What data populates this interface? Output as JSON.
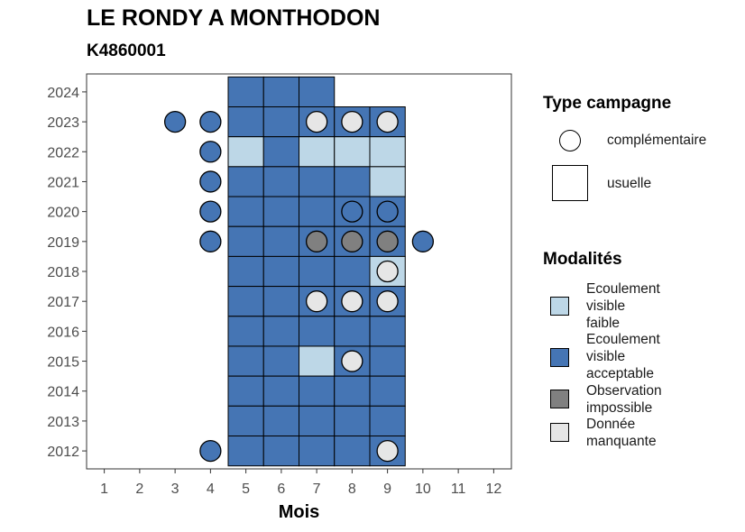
{
  "title": "LE RONDY A MONTHODON",
  "subtitle": "K4860001",
  "colors": {
    "faible": "#BDD7E7",
    "acceptable": "#4575B4",
    "impossible": "#808080",
    "manquante": "#E6E6E6"
  },
  "legend_type": {
    "title": "Type campagne",
    "items": [
      {
        "shape": "circle",
        "label": "complémentaire"
      },
      {
        "shape": "square",
        "label": "usuelle"
      }
    ]
  },
  "legend_modalites": {
    "title": "Modalités",
    "items": [
      {
        "key": "faible",
        "lines": [
          "Ecoulement",
          "visible",
          "faible"
        ]
      },
      {
        "key": "acceptable",
        "lines": [
          "Ecoulement",
          "visible",
          "acceptable"
        ]
      },
      {
        "key": "impossible",
        "lines": [
          "Observation",
          "impossible"
        ]
      },
      {
        "key": "manquante",
        "lines": [
          "Donnée",
          "manquante"
        ]
      }
    ]
  },
  "chart_data": {
    "type": "heatmap",
    "title": "LE RONDY A MONTHODON",
    "subtitle": "K4860001",
    "xlabel": "Mois",
    "ylabel": "",
    "x_ticks": [
      1,
      2,
      3,
      4,
      5,
      6,
      7,
      8,
      9,
      10,
      11,
      12
    ],
    "y_ticks": [
      2012,
      2013,
      2014,
      2015,
      2016,
      2017,
      2018,
      2019,
      2020,
      2021,
      2022,
      2023,
      2024
    ],
    "xlim": [
      0.5,
      12.5
    ],
    "ylim": [
      2011.4,
      2024.6
    ],
    "usuelle": [
      {
        "year": 2024,
        "month": 5,
        "modalite": "acceptable"
      },
      {
        "year": 2024,
        "month": 6,
        "modalite": "acceptable"
      },
      {
        "year": 2024,
        "month": 7,
        "modalite": "acceptable"
      },
      {
        "year": 2023,
        "month": 5,
        "modalite": "acceptable"
      },
      {
        "year": 2023,
        "month": 6,
        "modalite": "acceptable"
      },
      {
        "year": 2023,
        "month": 7,
        "modalite": "acceptable"
      },
      {
        "year": 2023,
        "month": 8,
        "modalite": "acceptable"
      },
      {
        "year": 2023,
        "month": 9,
        "modalite": "acceptable"
      },
      {
        "year": 2022,
        "month": 5,
        "modalite": "faible"
      },
      {
        "year": 2022,
        "month": 6,
        "modalite": "acceptable"
      },
      {
        "year": 2022,
        "month": 7,
        "modalite": "faible"
      },
      {
        "year": 2022,
        "month": 8,
        "modalite": "faible"
      },
      {
        "year": 2022,
        "month": 9,
        "modalite": "faible"
      },
      {
        "year": 2021,
        "month": 5,
        "modalite": "acceptable"
      },
      {
        "year": 2021,
        "month": 6,
        "modalite": "acceptable"
      },
      {
        "year": 2021,
        "month": 7,
        "modalite": "acceptable"
      },
      {
        "year": 2021,
        "month": 8,
        "modalite": "acceptable"
      },
      {
        "year": 2021,
        "month": 9,
        "modalite": "faible"
      },
      {
        "year": 2020,
        "month": 5,
        "modalite": "acceptable"
      },
      {
        "year": 2020,
        "month": 6,
        "modalite": "acceptable"
      },
      {
        "year": 2020,
        "month": 7,
        "modalite": "acceptable"
      },
      {
        "year": 2020,
        "month": 8,
        "modalite": "acceptable"
      },
      {
        "year": 2020,
        "month": 9,
        "modalite": "acceptable"
      },
      {
        "year": 2019,
        "month": 5,
        "modalite": "acceptable"
      },
      {
        "year": 2019,
        "month": 6,
        "modalite": "acceptable"
      },
      {
        "year": 2019,
        "month": 7,
        "modalite": "acceptable"
      },
      {
        "year": 2019,
        "month": 8,
        "modalite": "acceptable"
      },
      {
        "year": 2019,
        "month": 9,
        "modalite": "acceptable"
      },
      {
        "year": 2018,
        "month": 5,
        "modalite": "acceptable"
      },
      {
        "year": 2018,
        "month": 6,
        "modalite": "acceptable"
      },
      {
        "year": 2018,
        "month": 7,
        "modalite": "acceptable"
      },
      {
        "year": 2018,
        "month": 8,
        "modalite": "acceptable"
      },
      {
        "year": 2018,
        "month": 9,
        "modalite": "faible"
      },
      {
        "year": 2017,
        "month": 5,
        "modalite": "acceptable"
      },
      {
        "year": 2017,
        "month": 6,
        "modalite": "acceptable"
      },
      {
        "year": 2017,
        "month": 7,
        "modalite": "acceptable"
      },
      {
        "year": 2017,
        "month": 8,
        "modalite": "acceptable"
      },
      {
        "year": 2017,
        "month": 9,
        "modalite": "acceptable"
      },
      {
        "year": 2016,
        "month": 5,
        "modalite": "acceptable"
      },
      {
        "year": 2016,
        "month": 6,
        "modalite": "acceptable"
      },
      {
        "year": 2016,
        "month": 7,
        "modalite": "acceptable"
      },
      {
        "year": 2016,
        "month": 8,
        "modalite": "acceptable"
      },
      {
        "year": 2016,
        "month": 9,
        "modalite": "acceptable"
      },
      {
        "year": 2015,
        "month": 5,
        "modalite": "acceptable"
      },
      {
        "year": 2015,
        "month": 6,
        "modalite": "acceptable"
      },
      {
        "year": 2015,
        "month": 7,
        "modalite": "faible"
      },
      {
        "year": 2015,
        "month": 8,
        "modalite": "acceptable"
      },
      {
        "year": 2015,
        "month": 9,
        "modalite": "acceptable"
      },
      {
        "year": 2014,
        "month": 5,
        "modalite": "acceptable"
      },
      {
        "year": 2014,
        "month": 6,
        "modalite": "acceptable"
      },
      {
        "year": 2014,
        "month": 7,
        "modalite": "acceptable"
      },
      {
        "year": 2014,
        "month": 8,
        "modalite": "acceptable"
      },
      {
        "year": 2014,
        "month": 9,
        "modalite": "acceptable"
      },
      {
        "year": 2013,
        "month": 5,
        "modalite": "acceptable"
      },
      {
        "year": 2013,
        "month": 6,
        "modalite": "acceptable"
      },
      {
        "year": 2013,
        "month": 7,
        "modalite": "acceptable"
      },
      {
        "year": 2013,
        "month": 8,
        "modalite": "acceptable"
      },
      {
        "year": 2013,
        "month": 9,
        "modalite": "acceptable"
      },
      {
        "year": 2012,
        "month": 5,
        "modalite": "acceptable"
      },
      {
        "year": 2012,
        "month": 6,
        "modalite": "acceptable"
      },
      {
        "year": 2012,
        "month": 7,
        "modalite": "acceptable"
      },
      {
        "year": 2012,
        "month": 8,
        "modalite": "acceptable"
      },
      {
        "year": 2012,
        "month": 9,
        "modalite": "acceptable"
      }
    ],
    "complementaire": [
      {
        "year": 2023,
        "month": 3,
        "modalite": "acceptable"
      },
      {
        "year": 2023,
        "month": 4,
        "modalite": "acceptable"
      },
      {
        "year": 2023,
        "month": 7,
        "modalite": "manquante"
      },
      {
        "year": 2023,
        "month": 8,
        "modalite": "manquante"
      },
      {
        "year": 2023,
        "month": 9,
        "modalite": "manquante"
      },
      {
        "year": 2022,
        "month": 4,
        "modalite": "acceptable"
      },
      {
        "year": 2021,
        "month": 4,
        "modalite": "acceptable"
      },
      {
        "year": 2020,
        "month": 4,
        "modalite": "acceptable"
      },
      {
        "year": 2020,
        "month": 8,
        "modalite": "acceptable"
      },
      {
        "year": 2020,
        "month": 9,
        "modalite": "acceptable"
      },
      {
        "year": 2019,
        "month": 4,
        "modalite": "acceptable"
      },
      {
        "year": 2019,
        "month": 7,
        "modalite": "impossible"
      },
      {
        "year": 2019,
        "month": 8,
        "modalite": "impossible"
      },
      {
        "year": 2019,
        "month": 9,
        "modalite": "impossible"
      },
      {
        "year": 2019,
        "month": 10,
        "modalite": "acceptable"
      },
      {
        "year": 2018,
        "month": 9,
        "modalite": "manquante"
      },
      {
        "year": 2017,
        "month": 7,
        "modalite": "manquante"
      },
      {
        "year": 2017,
        "month": 8,
        "modalite": "manquante"
      },
      {
        "year": 2017,
        "month": 9,
        "modalite": "manquante"
      },
      {
        "year": 2015,
        "month": 8,
        "modalite": "manquante"
      },
      {
        "year": 2012,
        "month": 4,
        "modalite": "acceptable"
      },
      {
        "year": 2012,
        "month": 9,
        "modalite": "manquante"
      }
    ]
  }
}
